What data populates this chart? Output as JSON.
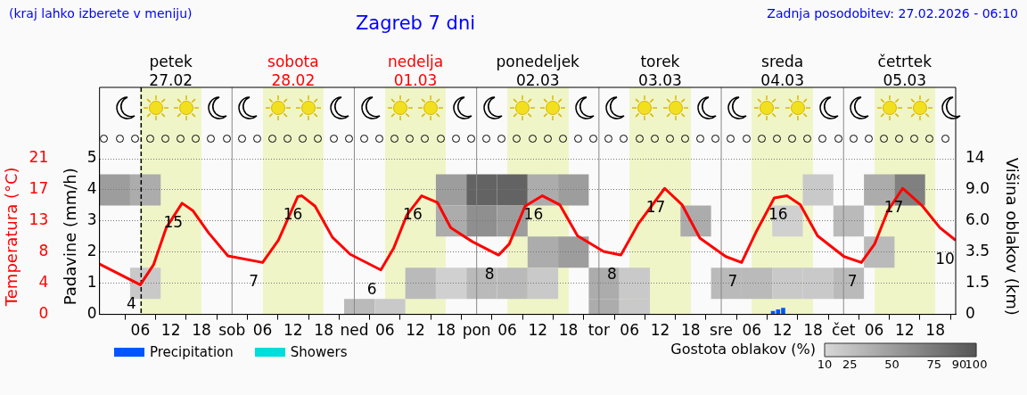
{
  "chart_data": [
    {
      "type": "line",
      "title": "Zagreb 7 dni",
      "annotations": [
        "(kraj lahko izberete v meniju)",
        "Zadnja posodobitev: 27.02.2026 - 06:10"
      ],
      "ylabel": "Padavine (mm/h)",
      "y2label": "Temperatura (°C)",
      "xlim": [
        "2026-02-26T22:00",
        "2026-03-05T22:00"
      ],
      "xticks": [
        {
          "value": "2026-02-27T06:00",
          "label": "06"
        },
        {
          "value": "2026-02-27T12:00",
          "label": "12"
        },
        {
          "value": "2026-02-27T18:00",
          "label": "18"
        },
        {
          "value": "2026-02-28T00:00",
          "label": "sob"
        },
        {
          "value": "2026-02-28T06:00",
          "label": "06"
        },
        {
          "value": "2026-02-28T12:00",
          "label": "12"
        },
        {
          "value": "2026-02-28T18:00",
          "label": "18"
        },
        {
          "value": "2026-03-01T00:00",
          "label": "ned"
        },
        {
          "value": "2026-03-01T06:00",
          "label": "06"
        },
        {
          "value": "2026-03-01T12:00",
          "label": "12"
        },
        {
          "value": "2026-03-01T18:00",
          "label": "18"
        },
        {
          "value": "2026-03-02T00:00",
          "label": "pon"
        },
        {
          "value": "2026-03-02T06:00",
          "label": "06"
        },
        {
          "value": "2026-03-02T12:00",
          "label": "12"
        },
        {
          "value": "2026-03-02T18:00",
          "label": "18"
        },
        {
          "value": "2026-03-03T00:00",
          "label": "tor"
        },
        {
          "value": "2026-03-03T06:00",
          "label": "06"
        },
        {
          "value": "2026-03-03T12:00",
          "label": "12"
        },
        {
          "value": "2026-03-03T18:00",
          "label": "18"
        },
        {
          "value": "2026-03-04T00:00",
          "label": "sre"
        },
        {
          "value": "2026-03-04T06:00",
          "label": "06"
        },
        {
          "value": "2026-03-04T12:00",
          "label": "12"
        },
        {
          "value": "2026-03-04T18:00",
          "label": "18"
        },
        {
          "value": "2026-03-05T00:00",
          "label": "čet"
        },
        {
          "value": "2026-03-05T06:00",
          "label": "06"
        },
        {
          "value": "2026-03-05T12:00",
          "label": "12"
        },
        {
          "value": "2026-03-05T18:00",
          "label": "18"
        }
      ],
      "x2lim": [
        "2026-02-26T22:00",
        "2026-03-05T22:00"
      ],
      "x2ticks": [
        {
          "value": "2026-02-27T12:00",
          "label": "petek\n27.02"
        },
        {
          "value": "2026-02-28T12:00",
          "label": "sobota\n28.02"
        },
        {
          "value": "2026-03-01T12:00",
          "label": "nedelja\n01.03"
        },
        {
          "value": "2026-03-02T12:00",
          "label": "ponedeljek\n02.03"
        },
        {
          "value": "2026-03-03T12:00",
          "label": "torek\n03.03"
        },
        {
          "value": "2026-03-04T12:00",
          "label": "sreda\n04.03"
        },
        {
          "value": "2026-03-05T12:00",
          "label": "četrtek\n05.03"
        }
      ],
      "ylim": [
        0,
        5
      ],
      "yticks": [
        0,
        1,
        2,
        3,
        4,
        5
      ],
      "y2lim": [
        0,
        21
      ],
      "y2ticks": [
        0,
        {
          "value": 4.2,
          "label": "4"
        },
        {
          "value": 8.4,
          "label": "8"
        },
        {
          "value": 12.6,
          "label": "13"
        },
        {
          "value": 16.8,
          "label": "17"
        },
        21
      ],
      "grid": "y",
      "legend": "bottom left",
      "bands": [
        {
          "axis": "x",
          "from": "2026-02-27T06:00",
          "to": "2026-02-27T18:00",
          "color": "#f0f5c8"
        },
        {
          "axis": "x",
          "from": "2026-02-28T06:00",
          "to": "2026-02-28T18:00",
          "color": "#f0f5c8"
        },
        {
          "axis": "x",
          "from": "2026-03-01T06:00",
          "to": "2026-03-01T18:00",
          "color": "#f0f5c8"
        },
        {
          "axis": "x",
          "from": "2026-03-02T06:00",
          "to": "2026-03-02T18:00",
          "color": "#f0f5c8"
        },
        {
          "axis": "x",
          "from": "2026-03-03T06:00",
          "to": "2026-03-03T18:00",
          "color": "#f0f5c8"
        },
        {
          "axis": "x",
          "from": "2026-03-04T06:00",
          "to": "2026-03-04T18:00",
          "color": "#f0f5c8"
        },
        {
          "axis": "x",
          "from": "2026-03-05T06:00",
          "to": "2026-03-05T18:00",
          "color": "#f0f5c8"
        }
      ],
      "ref_lines": [
        {
          "axis": "x",
          "value": "2026-02-27T06:10",
          "line_style": "dashed",
          "color": "#000000"
        },
        {
          "axis": "x",
          "value": "2026-02-28T00:00",
          "line_style": "solid",
          "color": "#888888"
        },
        {
          "axis": "x",
          "value": "2026-03-01T00:00",
          "line_style": "solid",
          "color": "#888888"
        },
        {
          "axis": "x",
          "value": "2026-03-02T00:00",
          "line_style": "solid",
          "color": "#888888"
        },
        {
          "axis": "x",
          "value": "2026-03-03T00:00",
          "line_style": "solid",
          "color": "#888888"
        },
        {
          "axis": "x",
          "value": "2026-03-04T00:00",
          "line_style": "solid",
          "color": "#888888"
        },
        {
          "axis": "x",
          "value": "2026-03-05T00:00",
          "line_style": "solid",
          "color": "#888888"
        }
      ],
      "series": [
        {
          "type": "bar",
          "name": "Precipitation",
          "color": "#0055ff",
          "x": [
            "2026-03-04T10:30",
            "2026-03-04T11:30",
            "2026-03-04T12:30"
          ],
          "values": [
            0.1,
            0.15,
            0.2
          ]
        },
        {
          "type": "bar",
          "name": "Showers",
          "color": "#00dddd"
        },
        {
          "type": "line",
          "axis": "y2",
          "color": "#ff0000",
          "line_style": "solid",
          "marker": "none",
          "x": [
            "2026-02-26T22:00",
            "2026-02-27T06:00",
            "2026-02-27T08:36",
            "2026-02-27T11:06",
            "2026-02-27T14:12",
            "2026-02-27T16:18",
            "2026-02-27T19:24",
            "2026-02-27T23:12",
            "2026-02-28T06:00",
            "2026-02-28T09:06",
            "2026-02-28T12:54",
            "2026-02-28T13:42",
            "2026-02-28T16:18",
            "2026-02-28T19:42",
            "2026-02-28T23:12",
            "2026-03-01T05:12",
            "2026-03-01T07:42",
            "2026-03-01T10:18",
            "2026-03-01T13:12",
            "2026-03-01T16:18",
            "2026-03-01T18:54",
            "2026-03-01T23:12",
            "2026-03-02T04:18",
            "2026-03-02T06:24",
            "2026-03-02T09:30",
            "2026-03-02T12:54",
            "2026-03-02T16:18",
            "2026-03-02T19:48",
            "2026-03-03T00:54",
            "2026-03-03T04:18",
            "2026-03-03T07:48",
            "2026-03-03T12:54",
            "2026-03-03T16:18",
            "2026-03-03T19:48",
            "2026-03-04T00:54",
            "2026-03-04T04:00",
            "2026-03-04T06:54",
            "2026-03-04T10:24",
            "2026-03-04T12:54",
            "2026-03-04T15:30",
            "2026-03-04T18:54",
            "2026-03-05T00:06",
            "2026-03-05T03:30",
            "2026-03-05T06:06",
            "2026-03-05T08:42",
            "2026-03-05T11:36",
            "2026-03-05T15:30",
            "2026-03-05T18:54",
            "2026-03-05T22:00"
          ],
          "values": [
            6.8,
            4,
            6.7,
            11.7,
            15,
            14,
            11,
            7.9,
            7,
            10,
            15.9,
            16,
            14.6,
            10.4,
            8.1,
            6,
            8.9,
            13.4,
            16,
            15.1,
            11.7,
            9.8,
            8,
            9.5,
            14.6,
            16,
            14.8,
            10.6,
            8.5,
            8,
            12.3,
            17,
            14.8,
            10.3,
            7.8,
            7,
            11.2,
            15.7,
            16,
            14.8,
            10.6,
            7.8,
            7,
            9.5,
            14,
            17,
            14.6,
            11.7,
            10
          ],
          "value_labels": [
            null,
            "4",
            null,
            null,
            "15",
            null,
            null,
            null,
            "7",
            null,
            null,
            "16",
            null,
            null,
            null,
            "6",
            null,
            null,
            "16",
            null,
            null,
            null,
            "8",
            null,
            null,
            "16",
            null,
            null,
            null,
            "8",
            null,
            "17",
            null,
            null,
            null,
            "7",
            null,
            null,
            "16",
            null,
            null,
            null,
            "7",
            null,
            null,
            "17",
            null,
            null,
            "10"
          ]
        }
      ]
    },
    {
      "type": "heatmap",
      "ylabel": "Višina oblakov (km)",
      "clabel": "Gostota oblakov (%)",
      "tick_labels": "y",
      "categories": [
        null,
        null,
        null,
        null,
        null,
        null,
        null,
        null,
        null,
        null,
        null,
        null,
        null,
        null,
        null,
        null,
        null,
        null,
        null,
        null,
        null,
        null,
        null,
        null,
        null,
        null,
        null,
        null
      ],
      "y_categories": [
        "14",
        "9.0",
        "6.0",
        "3.5",
        "1.5",
        "0"
      ],
      "clim": [
        10,
        100
      ],
      "cticks": [
        10,
        25,
        50,
        75,
        90,
        100
      ],
      "cells": [
        [
          null,
          null,
          null,
          null,
          null,
          null,
          null,
          null,
          null,
          null,
          null,
          null,
          null,
          null,
          null,
          null,
          null,
          null,
          null,
          null,
          null,
          null,
          null,
          null,
          null,
          null,
          null,
          null
        ],
        [
          50,
          40,
          null,
          null,
          null,
          null,
          null,
          null,
          null,
          null,
          null,
          50,
          90,
          90,
          40,
          50,
          null,
          null,
          null,
          null,
          null,
          null,
          null,
          20,
          null,
          40,
          70,
          null
        ],
        [
          null,
          null,
          null,
          null,
          null,
          null,
          null,
          null,
          null,
          null,
          null,
          40,
          60,
          50,
          null,
          null,
          null,
          null,
          null,
          40,
          null,
          null,
          15,
          null,
          30,
          null,
          null,
          null
        ],
        [
          null,
          null,
          null,
          null,
          null,
          null,
          null,
          null,
          null,
          null,
          null,
          null,
          null,
          null,
          40,
          50,
          null,
          null,
          null,
          null,
          null,
          null,
          null,
          null,
          null,
          30,
          null,
          null
        ],
        [
          null,
          20,
          null,
          null,
          null,
          null,
          null,
          null,
          null,
          null,
          30,
          15,
          30,
          30,
          20,
          null,
          40,
          20,
          null,
          null,
          30,
          30,
          20,
          20,
          30,
          null,
          null,
          null
        ],
        [
          null,
          null,
          null,
          null,
          null,
          null,
          null,
          null,
          30,
          20,
          null,
          null,
          null,
          null,
          null,
          null,
          40,
          20,
          null,
          null,
          null,
          null,
          null,
          null,
          null,
          null,
          null,
          null
        ]
      ]
    }
  ]
}
